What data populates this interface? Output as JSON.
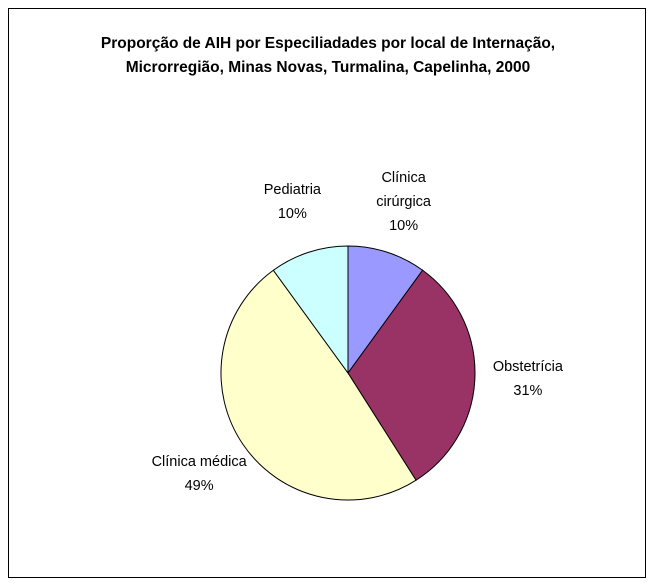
{
  "chart_data": {
    "type": "pie",
    "title": "Proporção de AIH por Especiliadades por local de Internação, Microrregião, Minas Novas, Turmalina, Capelinha, 2000",
    "categories": [
      "Clínica cirúrgica",
      "Obstetrícia",
      "Clínica médica",
      "Pediatria"
    ],
    "values": [
      10,
      31,
      49,
      10
    ],
    "value_labels": [
      "10%",
      "31%",
      "49%",
      "10%"
    ],
    "colors": [
      "#9999ff",
      "#993366",
      "#ffffcc",
      "#ccffff"
    ]
  }
}
